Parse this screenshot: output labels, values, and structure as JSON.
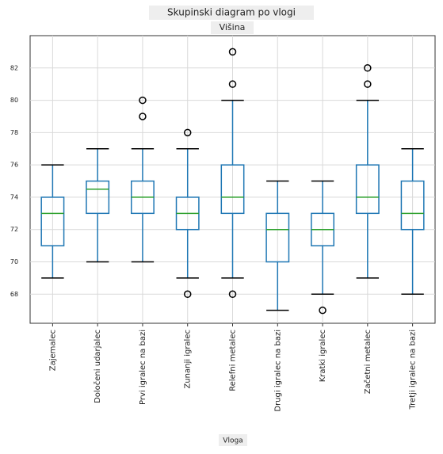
{
  "chart_data": {
    "type": "box",
    "title": "Skupinski diagram po vlogi",
    "subtitle": "Višina",
    "x_label": "Vloga",
    "categories": [
      "Zajemalec",
      "Določeni udarjalec",
      "Prvi igralec na bazi",
      "Zunanji igralec",
      "Relefni metalec",
      "Drugi igralec na bazi",
      "Kratki igralec",
      "Začetni metalec",
      "Tretji igralec na bazi"
    ],
    "boxes": [
      {
        "whislo": 69,
        "q1": 71,
        "med": 73,
        "q3": 74,
        "whishi": 76,
        "fliers": []
      },
      {
        "whislo": 70,
        "q1": 73,
        "med": 74.5,
        "q3": 75,
        "whishi": 77,
        "fliers": []
      },
      {
        "whislo": 70,
        "q1": 73,
        "med": 74,
        "q3": 75,
        "whishi": 77,
        "fliers": [
          79,
          80
        ]
      },
      {
        "whislo": 69,
        "q1": 72,
        "med": 73,
        "q3": 74,
        "whishi": 77,
        "fliers": [
          78,
          68
        ]
      },
      {
        "whislo": 69,
        "q1": 73,
        "med": 74,
        "q3": 76,
        "whishi": 80,
        "fliers": [
          83,
          81,
          68
        ]
      },
      {
        "whislo": 67,
        "q1": 70,
        "med": 72,
        "q3": 73,
        "whishi": 75,
        "fliers": []
      },
      {
        "whislo": 68,
        "q1": 71,
        "med": 72,
        "q3": 73,
        "whishi": 75,
        "fliers": [
          67
        ]
      },
      {
        "whislo": 69,
        "q1": 73,
        "med": 74,
        "q3": 76,
        "whishi": 80,
        "fliers": [
          81,
          82
        ]
      },
      {
        "whislo": 68,
        "q1": 72,
        "med": 73,
        "q3": 75,
        "whishi": 77,
        "fliers": []
      }
    ],
    "box_color": "#1f77b4",
    "median_color": "#2ca02c",
    "cap_color": "#000000",
    "ylim": [
      66.2,
      84
    ],
    "yticks": [
      68,
      70,
      72,
      74,
      76,
      78,
      80,
      82
    ],
    "grid": true
  }
}
